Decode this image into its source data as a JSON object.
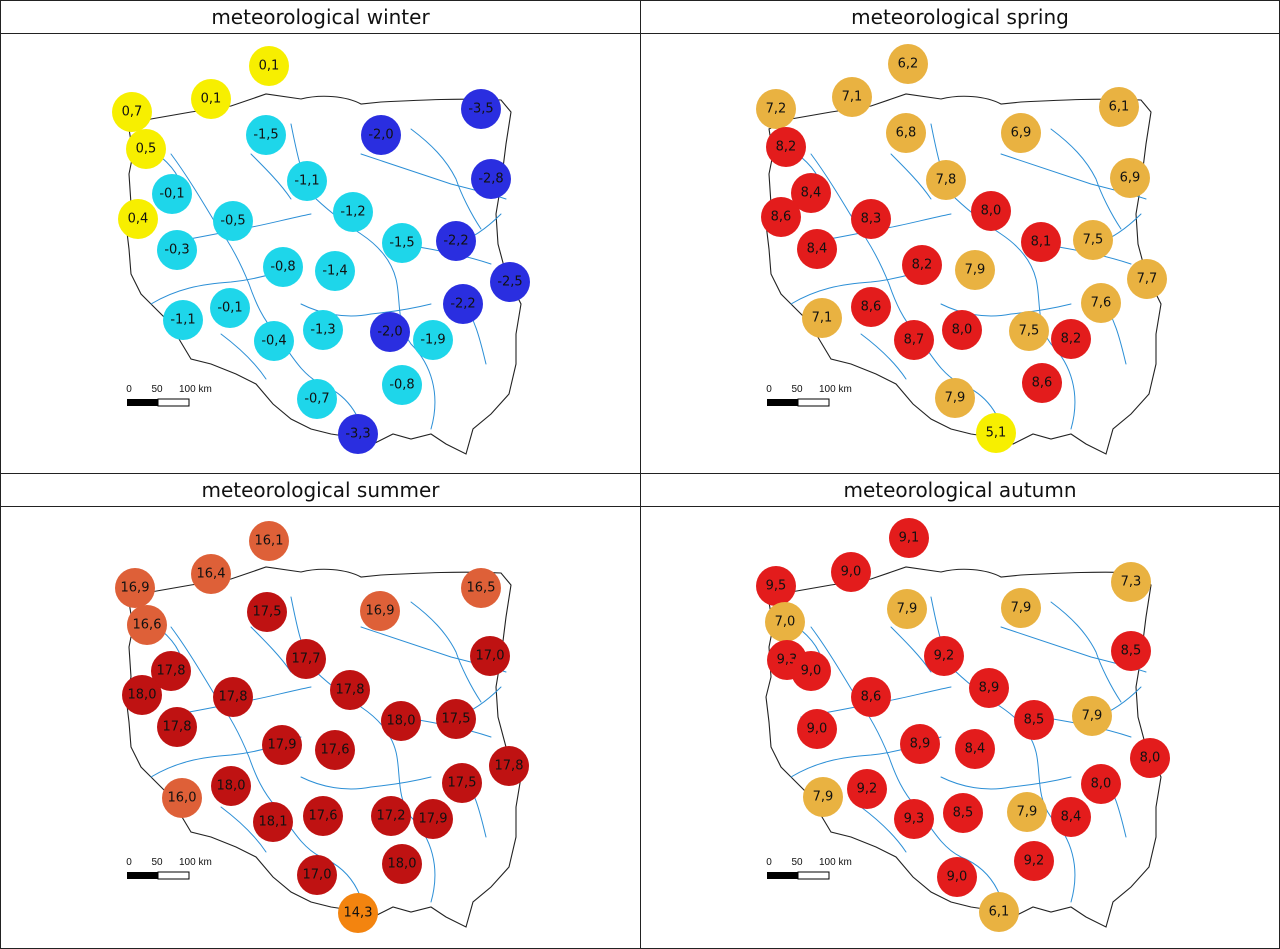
{
  "scale_bar": {
    "ticks": [
      "0",
      "50",
      "100 km"
    ]
  },
  "colors": {
    "yellow": "#f7ef00",
    "cyan": "#1ed6ea",
    "blue": "#2a2ee0",
    "light_orange": "#e9b241",
    "red": "#e31c1c",
    "dark_red": "#bf1212",
    "salmon": "#de6038",
    "orange": "#f3840f",
    "river": "#2c8fd6",
    "border": "#222222"
  },
  "maps": [
    {
      "title": "meteorological winter",
      "stations": [
        {
          "value": "0,1",
          "color": "yellow"
        },
        {
          "value": "0,1",
          "color": "yellow"
        },
        {
          "value": "0,7",
          "color": "yellow"
        },
        {
          "value": "0,5",
          "color": "yellow"
        },
        {
          "value": "0,4",
          "color": "yellow"
        },
        {
          "value": "-1,5",
          "color": "cyan"
        },
        {
          "value": "-2,0",
          "color": "blue"
        },
        {
          "value": "-3,5",
          "color": "blue"
        },
        {
          "value": "-0,1",
          "color": "cyan"
        },
        {
          "value": "-1,1",
          "color": "cyan"
        },
        {
          "value": "-2,8",
          "color": "blue"
        },
        {
          "value": "-0,5",
          "color": "cyan"
        },
        {
          "value": "-1,2",
          "color": "cyan"
        },
        {
          "value": "-0,3",
          "color": "cyan"
        },
        {
          "value": "-1,5",
          "color": "cyan"
        },
        {
          "value": "-2,2",
          "color": "blue"
        },
        {
          "value": "-0,8",
          "color": "cyan"
        },
        {
          "value": "-1,4",
          "color": "cyan"
        },
        {
          "value": "-2,5",
          "color": "blue"
        },
        {
          "value": "-0,1",
          "color": "cyan"
        },
        {
          "value": "-2,2",
          "color": "blue"
        },
        {
          "value": "-1,1",
          "color": "cyan"
        },
        {
          "value": "-1,3",
          "color": "cyan"
        },
        {
          "value": "-2,0",
          "color": "blue"
        },
        {
          "value": "-0,4",
          "color": "cyan"
        },
        {
          "value": "-1,9",
          "color": "cyan"
        },
        {
          "value": "-0,8",
          "color": "cyan"
        },
        {
          "value": "-0,7",
          "color": "cyan"
        },
        {
          "value": "-3,3",
          "color": "blue"
        }
      ]
    },
    {
      "title": "meteorological spring",
      "stations": [
        {
          "value": "6,2",
          "color": "light_orange"
        },
        {
          "value": "7,1",
          "color": "light_orange"
        },
        {
          "value": "7,2",
          "color": "light_orange"
        },
        {
          "value": "8,2",
          "color": "red"
        },
        {
          "value": "6,8",
          "color": "light_orange"
        },
        {
          "value": "6,9",
          "color": "light_orange"
        },
        {
          "value": "6,1",
          "color": "light_orange"
        },
        {
          "value": "8,4",
          "color": "red"
        },
        {
          "value": "7,8",
          "color": "light_orange"
        },
        {
          "value": "6,9",
          "color": "light_orange"
        },
        {
          "value": "8,6",
          "color": "red"
        },
        {
          "value": "8,3",
          "color": "red"
        },
        {
          "value": "8,0",
          "color": "red"
        },
        {
          "value": "8,4",
          "color": "red"
        },
        {
          "value": "8,1",
          "color": "red"
        },
        {
          "value": "7,5",
          "color": "light_orange"
        },
        {
          "value": "8,2",
          "color": "red"
        },
        {
          "value": "7,9",
          "color": "light_orange"
        },
        {
          "value": "7,7",
          "color": "light_orange"
        },
        {
          "value": "8,6",
          "color": "red"
        },
        {
          "value": "7,6",
          "color": "light_orange"
        },
        {
          "value": "7,1",
          "color": "light_orange"
        },
        {
          "value": "8,0",
          "color": "red"
        },
        {
          "value": "7,5",
          "color": "light_orange"
        },
        {
          "value": "8,7",
          "color": "red"
        },
        {
          "value": "8,2",
          "color": "red"
        },
        {
          "value": "8,6",
          "color": "red"
        },
        {
          "value": "7,9",
          "color": "light_orange"
        },
        {
          "value": "5,1",
          "color": "yellow"
        }
      ]
    },
    {
      "title": "meteorological summer",
      "stations": [
        {
          "value": "16,1",
          "color": "salmon"
        },
        {
          "value": "16,4",
          "color": "salmon"
        },
        {
          "value": "16,9",
          "color": "salmon"
        },
        {
          "value": "16,6",
          "color": "salmon"
        },
        {
          "value": "17,5",
          "color": "dark_red"
        },
        {
          "value": "16,5",
          "color": "salmon"
        },
        {
          "value": "16,9",
          "color": "salmon"
        },
        {
          "value": "17,0",
          "color": "dark_red"
        },
        {
          "value": "17,7",
          "color": "dark_red"
        },
        {
          "value": "17,8",
          "color": "dark_red"
        },
        {
          "value": "17,8",
          "color": "dark_red"
        },
        {
          "value": "18,0",
          "color": "dark_red"
        },
        {
          "value": "17,8",
          "color": "dark_red"
        },
        {
          "value": "18,0",
          "color": "dark_red"
        },
        {
          "value": "17,5",
          "color": "dark_red"
        },
        {
          "value": "17,8",
          "color": "dark_red"
        },
        {
          "value": "17,9",
          "color": "dark_red"
        },
        {
          "value": "17,6",
          "color": "dark_red"
        },
        {
          "value": "17,8",
          "color": "dark_red"
        },
        {
          "value": "16,0",
          "color": "salmon"
        },
        {
          "value": "18,0",
          "color": "dark_red"
        },
        {
          "value": "17,5",
          "color": "dark_red"
        },
        {
          "value": "18,1",
          "color": "dark_red"
        },
        {
          "value": "17,6",
          "color": "dark_red"
        },
        {
          "value": "17,2",
          "color": "dark_red"
        },
        {
          "value": "17,9",
          "color": "dark_red"
        },
        {
          "value": "17,0",
          "color": "dark_red"
        },
        {
          "value": "18,0",
          "color": "dark_red"
        },
        {
          "value": "14,3",
          "color": "orange"
        }
      ]
    },
    {
      "title": "meteorological autumn",
      "stations": [
        {
          "value": "9,1",
          "color": "red"
        },
        {
          "value": "9,0",
          "color": "red"
        },
        {
          "value": "9,5",
          "color": "red"
        },
        {
          "value": "7,0",
          "color": "light_orange"
        },
        {
          "value": "9,3",
          "color": "red"
        },
        {
          "value": "7,9",
          "color": "light_orange"
        },
        {
          "value": "7,9",
          "color": "light_orange"
        },
        {
          "value": "7,3",
          "color": "light_orange"
        },
        {
          "value": "8,5",
          "color": "red"
        },
        {
          "value": "9,0",
          "color": "red"
        },
        {
          "value": "9,2",
          "color": "red"
        },
        {
          "value": "8,9",
          "color": "red"
        },
        {
          "value": "8,6",
          "color": "red"
        },
        {
          "value": "9,0",
          "color": "red"
        },
        {
          "value": "8,5",
          "color": "red"
        },
        {
          "value": "7,9",
          "color": "light_orange"
        },
        {
          "value": "8,9",
          "color": "red"
        },
        {
          "value": "8,4",
          "color": "red"
        },
        {
          "value": "8,0",
          "color": "red"
        },
        {
          "value": "9,2",
          "color": "red"
        },
        {
          "value": "8,0",
          "color": "red"
        },
        {
          "value": "7,9",
          "color": "light_orange"
        },
        {
          "value": "9,3",
          "color": "red"
        },
        {
          "value": "8,5",
          "color": "red"
        },
        {
          "value": "7,9",
          "color": "light_orange"
        },
        {
          "value": "8,4",
          "color": "red"
        },
        {
          "value": "9,2",
          "color": "red"
        },
        {
          "value": "9,0",
          "color": "red"
        },
        {
          "value": "6,1",
          "color": "light_orange"
        }
      ]
    }
  ]
}
